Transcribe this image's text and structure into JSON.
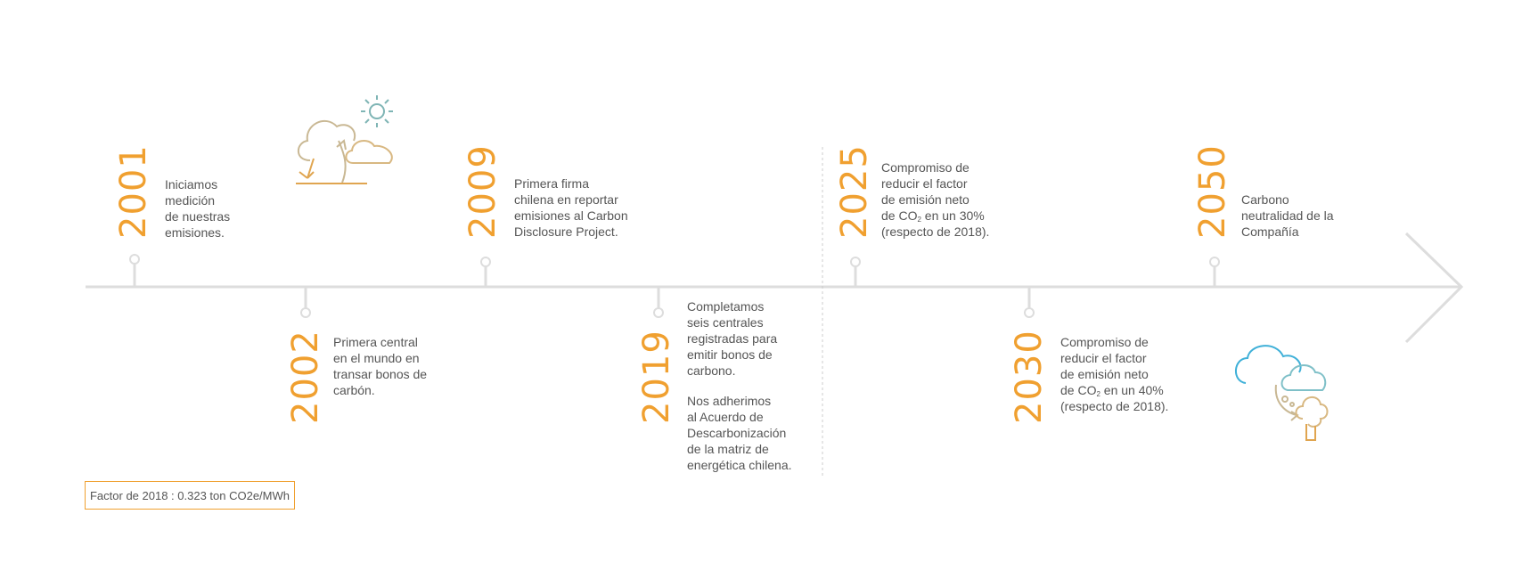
{
  "milestones": [
    {
      "year": "2001",
      "lines": [
        "Iniciamos",
        "medición",
        "de nuestras",
        "emisiones."
      ]
    },
    {
      "year": "2002",
      "lines": [
        "Primera central",
        "en el mundo en",
        "transar bonos de",
        "carbón."
      ]
    },
    {
      "year": "2009",
      "lines": [
        "Primera firma",
        "chilena en reportar",
        "emisiones al Carbon",
        "Disclosure Project."
      ]
    },
    {
      "year": "2019",
      "lines": [
        "Completamos",
        "seis centrales",
        "registradas para",
        "emitir bonos de",
        "carbono."
      ],
      "lines2": [
        "Nos adherimos",
        "al Acuerdo de",
        "Descarbonización",
        "de la matriz de",
        "energética chilena."
      ]
    },
    {
      "year": "2025",
      "lines": [
        "Compromiso de",
        "reducir el factor",
        "de emisión neto"
      ],
      "co_prefix": "de CO",
      "co_sub": "2",
      "co_suffix": " en un 30%",
      "last": "(respecto de 2018)."
    },
    {
      "year": "2030",
      "lines": [
        "Compromiso de",
        "reducir el factor",
        "de emisión neto"
      ],
      "co_prefix": "de CO",
      "co_sub": "2",
      "co_suffix": " en un 40%",
      "last": "(respecto de 2018)."
    },
    {
      "year": "2050",
      "lines": [
        "Carbono",
        "neutralidad de la",
        "Compañía"
      ]
    }
  ],
  "factor_note": "Factor de 2018 : 0.323 ton CO2e/MWh",
  "colors": {
    "accent": "#f0a030",
    "line": "#dddddd",
    "text": "#555555",
    "teal": "#7fb5b5",
    "blue": "#3fb0d8"
  },
  "icons": [
    "weather-cloud-sun-icon",
    "cloud-tree-icon"
  ]
}
